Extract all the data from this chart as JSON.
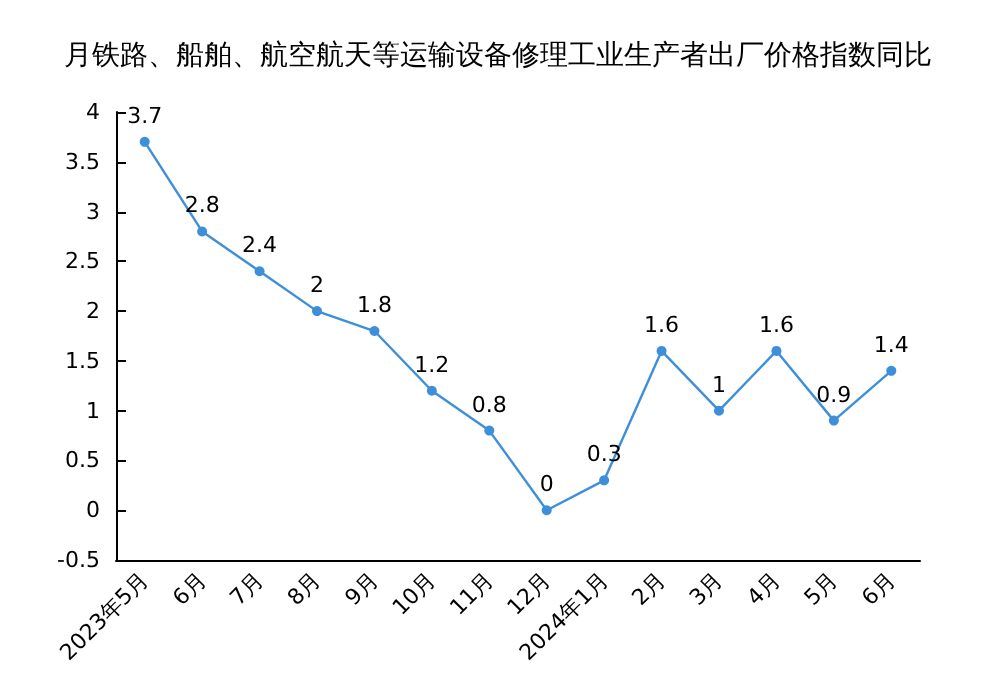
{
  "chart_data": {
    "type": "line",
    "title": "月铁路、船舶、航空航天等运输设备修理工业生产者出厂价格指数同比",
    "categories": [
      "2023年5月",
      "6月",
      "7月",
      "8月",
      "9月",
      "10月",
      "11月",
      "12月",
      "2024年1月",
      "2月",
      "3月",
      "4月",
      "5月",
      "6月"
    ],
    "series": [
      {
        "color": "#3d8fd9",
        "values": [
          3.7,
          2.8,
          2.4,
          2,
          1.8,
          1.2,
          0.8,
          0,
          0.3,
          1.6,
          1,
          1.6,
          0.9,
          1.4
        ]
      }
    ],
    "ylim": [
      -0.5,
      4
    ],
    "yticks": [
      -0.5,
      0,
      0.5,
      1,
      1.5,
      2,
      2.5,
      3,
      3.5,
      4
    ],
    "grid": false,
    "marker": "circle",
    "data_labels": true
  }
}
